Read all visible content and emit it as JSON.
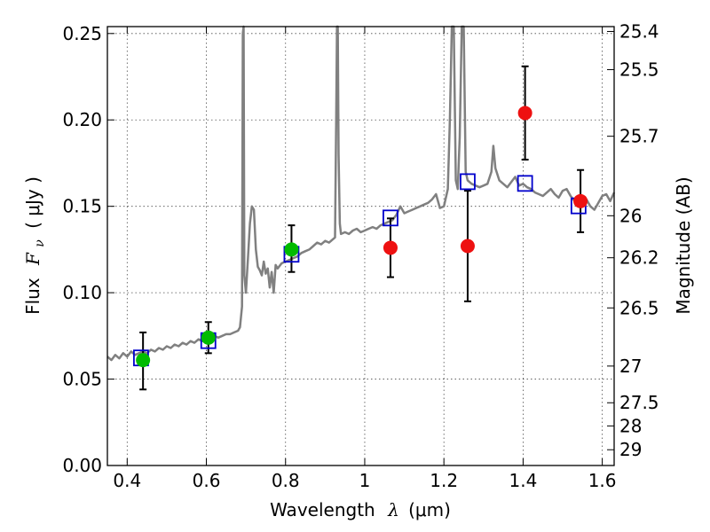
{
  "chart_data": {
    "type": "scatter",
    "xlabel_text": "Wavelength",
    "xlabel_symbol": "λ",
    "xlabel_unit": "(μm)",
    "ylabel_text": "Flux",
    "ylabel_symbol": "F",
    "ylabel_sub": "ν",
    "ylabel_unit": "( μJy )",
    "y2label": "Magnitude (AB)",
    "xlim": [
      0.35,
      1.63
    ],
    "ylim": [
      0.0,
      0.254
    ],
    "grid": true,
    "x_ticks": [
      0.4,
      0.6,
      0.8,
      1.0,
      1.2,
      1.4,
      1.6
    ],
    "x_tick_labels": [
      "0.4",
      "0.6",
      "0.8",
      "1",
      "1.2",
      "1.4",
      "1.6"
    ],
    "y_ticks": [
      0.0,
      0.05,
      0.1,
      0.15,
      0.2,
      0.25
    ],
    "y_tick_labels": [
      "0.00",
      "0.05",
      "0.10",
      "0.15",
      "0.20",
      "0.25"
    ],
    "y2_ticks": [
      "25.4",
      "25.5",
      "25.7",
      "26",
      "26.2",
      "26.5",
      "27",
      "27.5",
      "28",
      "29"
    ],
    "colors": {
      "spectrum": "#808080",
      "green": "#00bb00",
      "red": "#ee1111",
      "model_box": "#0000cc",
      "errorbar": "#000000"
    },
    "spectrum": [
      [
        0.35,
        0.063
      ],
      [
        0.36,
        0.061
      ],
      [
        0.37,
        0.064
      ],
      [
        0.38,
        0.062
      ],
      [
        0.39,
        0.065
      ],
      [
        0.4,
        0.063
      ],
      [
        0.41,
        0.066
      ],
      [
        0.42,
        0.064
      ],
      [
        0.43,
        0.065
      ],
      [
        0.44,
        0.066
      ],
      [
        0.45,
        0.065
      ],
      [
        0.46,
        0.067
      ],
      [
        0.47,
        0.066
      ],
      [
        0.48,
        0.068
      ],
      [
        0.49,
        0.067
      ],
      [
        0.5,
        0.069
      ],
      [
        0.51,
        0.068
      ],
      [
        0.52,
        0.07
      ],
      [
        0.53,
        0.069
      ],
      [
        0.54,
        0.071
      ],
      [
        0.55,
        0.07
      ],
      [
        0.56,
        0.072
      ],
      [
        0.57,
        0.071
      ],
      [
        0.58,
        0.073
      ],
      [
        0.59,
        0.072
      ],
      [
        0.6,
        0.074
      ],
      [
        0.61,
        0.073
      ],
      [
        0.62,
        0.075
      ],
      [
        0.63,
        0.074
      ],
      [
        0.64,
        0.075
      ],
      [
        0.65,
        0.076
      ],
      [
        0.66,
        0.076
      ],
      [
        0.67,
        0.077
      ],
      [
        0.68,
        0.078
      ],
      [
        0.685,
        0.08
      ],
      [
        0.69,
        0.092
      ],
      [
        0.692,
        0.25
      ],
      [
        0.694,
        0.26
      ],
      [
        0.696,
        0.11
      ],
      [
        0.7,
        0.1
      ],
      [
        0.705,
        0.12
      ],
      [
        0.71,
        0.14
      ],
      [
        0.715,
        0.15
      ],
      [
        0.72,
        0.148
      ],
      [
        0.725,
        0.125
      ],
      [
        0.73,
        0.115
      ],
      [
        0.735,
        0.113
      ],
      [
        0.74,
        0.11
      ],
      [
        0.745,
        0.118
      ],
      [
        0.75,
        0.111
      ],
      [
        0.755,
        0.114
      ],
      [
        0.76,
        0.103
      ],
      [
        0.765,
        0.112
      ],
      [
        0.77,
        0.1
      ],
      [
        0.775,
        0.116
      ],
      [
        0.78,
        0.114
      ],
      [
        0.79,
        0.117
      ],
      [
        0.8,
        0.118
      ],
      [
        0.81,
        0.119
      ],
      [
        0.82,
        0.12
      ],
      [
        0.83,
        0.121
      ],
      [
        0.84,
        0.123
      ],
      [
        0.85,
        0.124
      ],
      [
        0.86,
        0.125
      ],
      [
        0.87,
        0.127
      ],
      [
        0.88,
        0.129
      ],
      [
        0.89,
        0.128
      ],
      [
        0.9,
        0.13
      ],
      [
        0.91,
        0.129
      ],
      [
        0.92,
        0.131
      ],
      [
        0.925,
        0.132
      ],
      [
        0.928,
        0.2
      ],
      [
        0.93,
        0.26
      ],
      [
        0.932,
        0.26
      ],
      [
        0.934,
        0.18
      ],
      [
        0.937,
        0.14
      ],
      [
        0.94,
        0.134
      ],
      [
        0.95,
        0.135
      ],
      [
        0.96,
        0.134
      ],
      [
        0.97,
        0.136
      ],
      [
        0.98,
        0.137
      ],
      [
        0.99,
        0.135
      ],
      [
        1.0,
        0.136
      ],
      [
        1.01,
        0.137
      ],
      [
        1.02,
        0.138
      ],
      [
        1.03,
        0.137
      ],
      [
        1.04,
        0.139
      ],
      [
        1.05,
        0.14
      ],
      [
        1.06,
        0.141
      ],
      [
        1.07,
        0.142
      ],
      [
        1.08,
        0.145
      ],
      [
        1.09,
        0.15
      ],
      [
        1.1,
        0.146
      ],
      [
        1.11,
        0.147
      ],
      [
        1.12,
        0.148
      ],
      [
        1.13,
        0.149
      ],
      [
        1.14,
        0.15
      ],
      [
        1.15,
        0.151
      ],
      [
        1.16,
        0.152
      ],
      [
        1.17,
        0.154
      ],
      [
        1.18,
        0.157
      ],
      [
        1.19,
        0.149
      ],
      [
        1.2,
        0.15
      ],
      [
        1.21,
        0.16
      ],
      [
        1.215,
        0.2
      ],
      [
        1.22,
        0.26
      ],
      [
        1.225,
        0.26
      ],
      [
        1.23,
        0.165
      ],
      [
        1.235,
        0.16
      ],
      [
        1.24,
        0.19
      ],
      [
        1.245,
        0.26
      ],
      [
        1.25,
        0.26
      ],
      [
        1.255,
        0.17
      ],
      [
        1.26,
        0.165
      ],
      [
        1.27,
        0.163
      ],
      [
        1.28,
        0.162
      ],
      [
        1.29,
        0.161
      ],
      [
        1.3,
        0.162
      ],
      [
        1.31,
        0.163
      ],
      [
        1.32,
        0.17
      ],
      [
        1.325,
        0.185
      ],
      [
        1.33,
        0.172
      ],
      [
        1.34,
        0.165
      ],
      [
        1.35,
        0.163
      ],
      [
        1.36,
        0.161
      ],
      [
        1.37,
        0.164
      ],
      [
        1.38,
        0.167
      ],
      [
        1.39,
        0.162
      ],
      [
        1.4,
        0.163
      ],
      [
        1.41,
        0.161
      ],
      [
        1.42,
        0.16
      ],
      [
        1.43,
        0.158
      ],
      [
        1.44,
        0.157
      ],
      [
        1.45,
        0.156
      ],
      [
        1.46,
        0.158
      ],
      [
        1.47,
        0.16
      ],
      [
        1.48,
        0.157
      ],
      [
        1.49,
        0.155
      ],
      [
        1.5,
        0.159
      ],
      [
        1.51,
        0.16
      ],
      [
        1.52,
        0.156
      ],
      [
        1.53,
        0.153
      ],
      [
        1.54,
        0.15
      ],
      [
        1.55,
        0.152
      ],
      [
        1.56,
        0.154
      ],
      [
        1.57,
        0.15
      ],
      [
        1.58,
        0.148
      ],
      [
        1.59,
        0.152
      ],
      [
        1.6,
        0.156
      ],
      [
        1.61,
        0.157
      ],
      [
        1.62,
        0.153
      ],
      [
        1.63,
        0.158
      ]
    ],
    "model_points": [
      {
        "x": 0.435,
        "y": 0.062
      },
      {
        "x": 0.605,
        "y": 0.072
      },
      {
        "x": 0.815,
        "y": 0.122
      },
      {
        "x": 1.065,
        "y": 0.143
      },
      {
        "x": 1.26,
        "y": 0.164
      },
      {
        "x": 1.405,
        "y": 0.163
      },
      {
        "x": 1.54,
        "y": 0.15
      }
    ],
    "green_points": [
      {
        "x": 0.44,
        "y": 0.061,
        "yerr_low": 0.044,
        "yerr_high": 0.077
      },
      {
        "x": 0.605,
        "y": 0.074,
        "yerr_low": 0.065,
        "yerr_high": 0.083
      },
      {
        "x": 0.815,
        "y": 0.125,
        "yerr_low": 0.112,
        "yerr_high": 0.139
      }
    ],
    "red_points": [
      {
        "x": 1.065,
        "y": 0.126,
        "yerr_low": 0.109,
        "yerr_high": 0.143
      },
      {
        "x": 1.26,
        "y": 0.127,
        "yerr_low": 0.095,
        "yerr_high": 0.159
      },
      {
        "x": 1.405,
        "y": 0.204,
        "yerr_low": 0.177,
        "yerr_high": 0.231
      },
      {
        "x": 1.545,
        "y": 0.153,
        "yerr_low": 0.135,
        "yerr_high": 0.171
      }
    ]
  }
}
